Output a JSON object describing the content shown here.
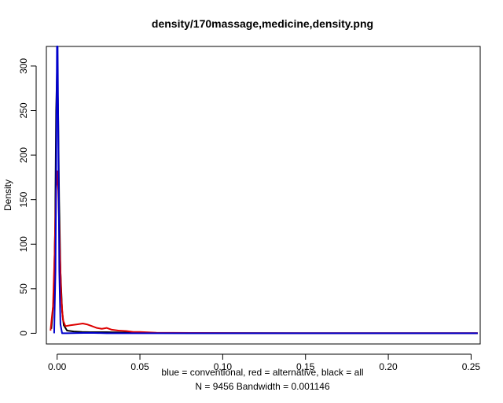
{
  "chart_data": {
    "type": "line",
    "title": "density/170massage,medicine,density.png",
    "xlabel": "blue = conventional, red = alternative, black = all",
    "sublabel": "N = 9456   Bandwidth = 0.001146",
    "ylabel": "Density",
    "xlim": [
      -0.0065,
      0.2555
    ],
    "ylim": [
      -12,
      322
    ],
    "x_ticks": [
      0.0,
      0.05,
      0.1,
      0.15,
      0.2,
      0.25
    ],
    "x_tick_labels": [
      "0.00",
      "0.05",
      "0.10",
      "0.15",
      "0.20",
      "0.25"
    ],
    "y_ticks": [
      0,
      50,
      100,
      150,
      200,
      250,
      300
    ],
    "y_tick_labels": [
      "0",
      "50",
      "100",
      "150",
      "200",
      "250",
      "300"
    ],
    "grid": false,
    "series": [
      {
        "name": "all",
        "color": "#000000",
        "points": [
          [
            -0.0035,
            5
          ],
          [
            -0.002,
            40
          ],
          [
            -0.0012,
            120
          ],
          [
            -0.0006,
            250
          ],
          [
            0.0,
            300
          ],
          [
            0.0006,
            250
          ],
          [
            0.0012,
            150
          ],
          [
            0.002,
            70
          ],
          [
            0.003,
            25
          ],
          [
            0.004,
            9
          ],
          [
            0.006,
            3
          ],
          [
            0.01,
            2
          ],
          [
            0.015,
            1.5
          ],
          [
            0.02,
            1.3
          ],
          [
            0.03,
            1.2
          ],
          [
            0.04,
            0.8
          ],
          [
            0.05,
            0.5
          ],
          [
            0.08,
            0.2
          ],
          [
            0.12,
            0.1
          ],
          [
            0.2,
            0.05
          ],
          [
            0.254,
            0.05
          ]
        ]
      },
      {
        "name": "alternative",
        "color": "#dd0000",
        "points": [
          [
            -0.004,
            3
          ],
          [
            -0.0025,
            30
          ],
          [
            -0.0015,
            90
          ],
          [
            -0.0007,
            160
          ],
          [
            0.0,
            182
          ],
          [
            0.0007,
            160
          ],
          [
            0.0015,
            100
          ],
          [
            0.0025,
            40
          ],
          [
            0.0035,
            15
          ],
          [
            0.005,
            8
          ],
          [
            0.008,
            9
          ],
          [
            0.012,
            10
          ],
          [
            0.0155,
            11
          ],
          [
            0.018,
            10
          ],
          [
            0.021,
            8
          ],
          [
            0.024,
            6
          ],
          [
            0.027,
            5
          ],
          [
            0.03,
            6
          ],
          [
            0.033,
            4
          ],
          [
            0.037,
            3
          ],
          [
            0.042,
            2.5
          ],
          [
            0.046,
            1.5
          ],
          [
            0.05,
            1.5
          ],
          [
            0.055,
            1
          ],
          [
            0.06,
            0.6
          ],
          [
            0.08,
            0.4
          ],
          [
            0.12,
            0.2
          ],
          [
            0.2,
            0.1
          ],
          [
            0.254,
            0.1
          ]
        ]
      },
      {
        "name": "conventional",
        "color": "#0000cc",
        "points": [
          [
            -0.0018,
            0
          ],
          [
            -0.001,
            70
          ],
          [
            -0.0005,
            200
          ],
          [
            -0.0001,
            322
          ],
          [
            0.0003,
            322
          ],
          [
            0.0008,
            200
          ],
          [
            0.0013,
            70
          ],
          [
            0.002,
            10
          ],
          [
            0.003,
            0
          ],
          [
            0.006,
            0
          ],
          [
            0.012,
            0.3
          ],
          [
            0.02,
            0.5
          ],
          [
            0.025,
            0.3
          ],
          [
            0.03,
            0
          ],
          [
            0.254,
            0
          ]
        ]
      }
    ]
  }
}
